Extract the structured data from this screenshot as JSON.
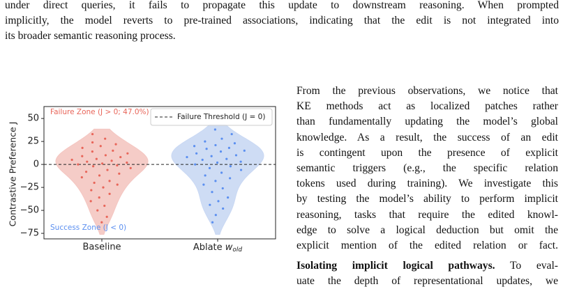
{
  "top_paragraph": {
    "lines": [
      "under direct queries, it fails to propagate this update to downstream reasoning. When prompted",
      "implicitly, the model reverts to pre-trained associations, indicating that the edit is not integrated into",
      "its broader semantic reasoning process."
    ]
  },
  "chart_data": {
    "type": "violin",
    "ylabel": "Contrastive Preference J",
    "categories": [
      "Baseline",
      "Ablate w_old"
    ],
    "series": [
      {
        "name": "Baseline",
        "color": "#e8665a",
        "fill": "#f4c6c1",
        "values": [
          33,
          28,
          24,
          22,
          20,
          18,
          15,
          14,
          12,
          10,
          9,
          8,
          6,
          5,
          4,
          3,
          2,
          1,
          0,
          -1,
          -2,
          -4,
          -6,
          -8,
          -10,
          -12,
          -14,
          -18,
          -20,
          -22,
          -25,
          -28,
          -32,
          -36,
          -40,
          -45,
          -50,
          -57,
          -63
        ]
      },
      {
        "name": "Ablate w_old",
        "color": "#5b8ff0",
        "fill": "#c9d8f3",
        "values": [
          38,
          33,
          28,
          25,
          23,
          21,
          20,
          18,
          17,
          15,
          14,
          12,
          10,
          9,
          8,
          6,
          5,
          3,
          2,
          0,
          -2,
          -4,
          -6,
          -9,
          -12,
          -15,
          -18,
          -22,
          -26,
          -30,
          -36,
          -40,
          -44,
          -48,
          -55,
          -63
        ]
      }
    ],
    "threshold": 0,
    "threshold_label": "Failure Threshold (J = 0)",
    "failure_zone": "Failure Zone (J > 0; 47.0%)",
    "success_zone": "Success Zone (J < 0)",
    "ylim": [
      -81,
      63
    ],
    "yticks": [
      50,
      25,
      0,
      {
        "value": -25,
        "label": "−25"
      },
      {
        "value": -50,
        "label": "−50"
      },
      {
        "value": -75,
        "label": "−75"
      }
    ]
  },
  "right_column": {
    "lines": [
      "From the previous observations, we notice that",
      "KE methods act as localized patches rather",
      "than fundamentally updating the model’s global",
      "knowledge. As a result, the success of an edit",
      "is contingent upon the presence of explicit",
      "semantic triggers (e.g., the specific relation",
      "tokens used during training). We investigate this",
      "by testing the model’s ability to perform implicit",
      "reasoning, tasks that require the edited knowl-",
      "edge to solve a logical deduction but omit the",
      "explicit mention of the edited relation or fact."
    ]
  },
  "section": {
    "heading": "Isolating implicit logical pathways.",
    "lines": [
      "To eval-",
      "uate the depth of representational updates, we"
    ]
  }
}
